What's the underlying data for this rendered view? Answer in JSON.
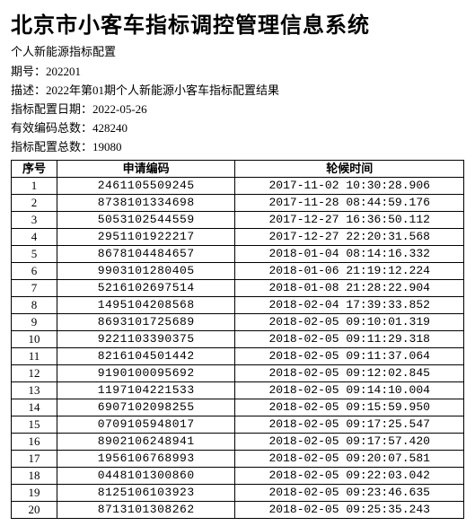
{
  "title": "北京市小客车指标调控管理信息系统",
  "subtitle": "个人新能源指标配置",
  "meta": {
    "period_label": "期号：",
    "period_value": "202201",
    "desc_label": "描述：",
    "desc_value": "2022年第01期个人新能源小客车指标配置结果",
    "config_date_label": "指标配置日期：",
    "config_date_value": "2022-05-26",
    "valid_count_label": "有效编码总数：",
    "valid_count_value": "428240",
    "config_count_label": "指标配置总数：",
    "config_count_value": "19080"
  },
  "table": {
    "headers": {
      "seq": "序号",
      "code": "申请编码",
      "time": "轮候时间"
    },
    "rows": [
      {
        "seq": "1",
        "code": "2461105509245",
        "time": "2017-11-02 10:30:28.906"
      },
      {
        "seq": "2",
        "code": "8738101334698",
        "time": "2017-11-28 08:44:59.176"
      },
      {
        "seq": "3",
        "code": "5053102544559",
        "time": "2017-12-27 16:36:50.112"
      },
      {
        "seq": "4",
        "code": "2951101922217",
        "time": "2017-12-27 22:20:31.568"
      },
      {
        "seq": "5",
        "code": "8678104484657",
        "time": "2018-01-04 08:14:16.332"
      },
      {
        "seq": "6",
        "code": "9903101280405",
        "time": "2018-01-06 21:19:12.224"
      },
      {
        "seq": "7",
        "code": "5216102697514",
        "time": "2018-01-08 21:28:22.904"
      },
      {
        "seq": "8",
        "code": "1495104208568",
        "time": "2018-02-04 17:39:33.852"
      },
      {
        "seq": "9",
        "code": "8693101725689",
        "time": "2018-02-05 09:10:01.319"
      },
      {
        "seq": "10",
        "code": "9221103390375",
        "time": "2018-02-05 09:11:29.318"
      },
      {
        "seq": "11",
        "code": "8216104501442",
        "time": "2018-02-05 09:11:37.064"
      },
      {
        "seq": "12",
        "code": "9190100095692",
        "time": "2018-02-05 09:12:02.845"
      },
      {
        "seq": "13",
        "code": "1197104221533",
        "time": "2018-02-05 09:14:10.004"
      },
      {
        "seq": "14",
        "code": "6907102098255",
        "time": "2018-02-05 09:15:59.950"
      },
      {
        "seq": "15",
        "code": "0709105948017",
        "time": "2018-02-05 09:17:25.547"
      },
      {
        "seq": "16",
        "code": "8902106248941",
        "time": "2018-02-05 09:17:57.420"
      },
      {
        "seq": "17",
        "code": "1956106768993",
        "time": "2018-02-05 09:20:07.581"
      },
      {
        "seq": "18",
        "code": "0448101300860",
        "time": "2018-02-05 09:22:03.042"
      },
      {
        "seq": "19",
        "code": "8125106103923",
        "time": "2018-02-05 09:23:46.635"
      },
      {
        "seq": "20",
        "code": "8713101308262",
        "time": "2018-02-05 09:25:35.243"
      }
    ]
  },
  "style": {
    "title_fontsize": 24,
    "body_fontsize": 13,
    "border_color": "#000000",
    "background_color": "#ffffff",
    "text_color": "#000000",
    "font_family_cn": "SimSun",
    "font_family_mono": "Courier New"
  }
}
